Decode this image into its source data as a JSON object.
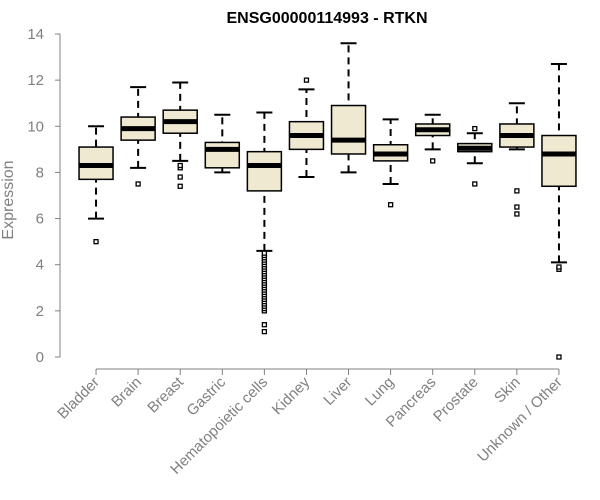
{
  "chart_data": {
    "type": "boxplot",
    "title": "ENSG00000114993 - RTKN",
    "xlabel": "",
    "ylabel": "Expression",
    "ylim": [
      0,
      14
    ],
    "yticks": [
      0,
      2,
      4,
      6,
      8,
      10,
      12,
      14
    ],
    "box_color": "#efe9d1",
    "categories": [
      "Bladder",
      "Brain",
      "Breast",
      "Gastric",
      "Hematopoietic cells",
      "Kidney",
      "Liver",
      "Lung",
      "Pancreas",
      "Prostate",
      "Skin",
      "Unknown / Other"
    ],
    "boxes": [
      {
        "name": "Bladder",
        "whisker_low": 6.0,
        "q1": 7.7,
        "median": 8.3,
        "q3": 9.1,
        "whisker_high": 10.0,
        "outliers": [
          5.0
        ]
      },
      {
        "name": "Brain",
        "whisker_low": 8.2,
        "q1": 9.4,
        "median": 9.9,
        "q3": 10.4,
        "whisker_high": 11.7,
        "outliers": [
          7.5
        ]
      },
      {
        "name": "Breast",
        "whisker_low": 8.5,
        "q1": 9.7,
        "median": 10.2,
        "q3": 10.7,
        "whisker_high": 11.9,
        "outliers": [
          7.4,
          7.8,
          8.2,
          8.3
        ]
      },
      {
        "name": "Gastric",
        "whisker_low": 8.0,
        "q1": 8.2,
        "median": 9.0,
        "q3": 9.3,
        "whisker_high": 10.5,
        "outliers": []
      },
      {
        "name": "Hematopoietic cells",
        "whisker_low": 4.6,
        "q1": 7.2,
        "median": 8.3,
        "q3": 8.9,
        "whisker_high": 10.6,
        "outliers": [
          1.1,
          1.4,
          2.0,
          2.1,
          2.2,
          2.3,
          2.4,
          2.5,
          2.6,
          2.7,
          2.8,
          2.9,
          3.0,
          3.1,
          3.2,
          3.3,
          3.4,
          3.5,
          3.6,
          3.7,
          3.8,
          3.9,
          4.0,
          4.1,
          4.2,
          4.3,
          4.4,
          4.5
        ]
      },
      {
        "name": "Kidney",
        "whisker_low": 7.8,
        "q1": 9.0,
        "median": 9.6,
        "q3": 10.2,
        "whisker_high": 11.6,
        "outliers": [
          12.0
        ]
      },
      {
        "name": "Liver",
        "whisker_low": 8.0,
        "q1": 8.8,
        "median": 9.4,
        "q3": 10.9,
        "whisker_high": 13.6,
        "outliers": []
      },
      {
        "name": "Lung",
        "whisker_low": 7.5,
        "q1": 8.5,
        "median": 8.8,
        "q3": 9.2,
        "whisker_high": 10.3,
        "outliers": [
          6.6
        ]
      },
      {
        "name": "Pancreas",
        "whisker_low": 9.0,
        "q1": 9.6,
        "median": 9.85,
        "q3": 10.1,
        "whisker_high": 10.5,
        "outliers": [
          8.5
        ]
      },
      {
        "name": "Prostate",
        "whisker_low": 8.4,
        "q1": 8.9,
        "median": 9.05,
        "q3": 9.25,
        "whisker_high": 9.7,
        "outliers": [
          7.5,
          9.9
        ]
      },
      {
        "name": "Skin",
        "whisker_low": 9.0,
        "q1": 9.1,
        "median": 9.6,
        "q3": 10.1,
        "whisker_high": 11.0,
        "outliers": [
          6.2,
          6.5,
          7.2
        ]
      },
      {
        "name": "Unknown / Other",
        "whisker_low": 4.1,
        "q1": 7.4,
        "median": 8.8,
        "q3": 9.6,
        "whisker_high": 12.7,
        "outliers": [
          0.0,
          3.8,
          3.9
        ]
      }
    ]
  }
}
